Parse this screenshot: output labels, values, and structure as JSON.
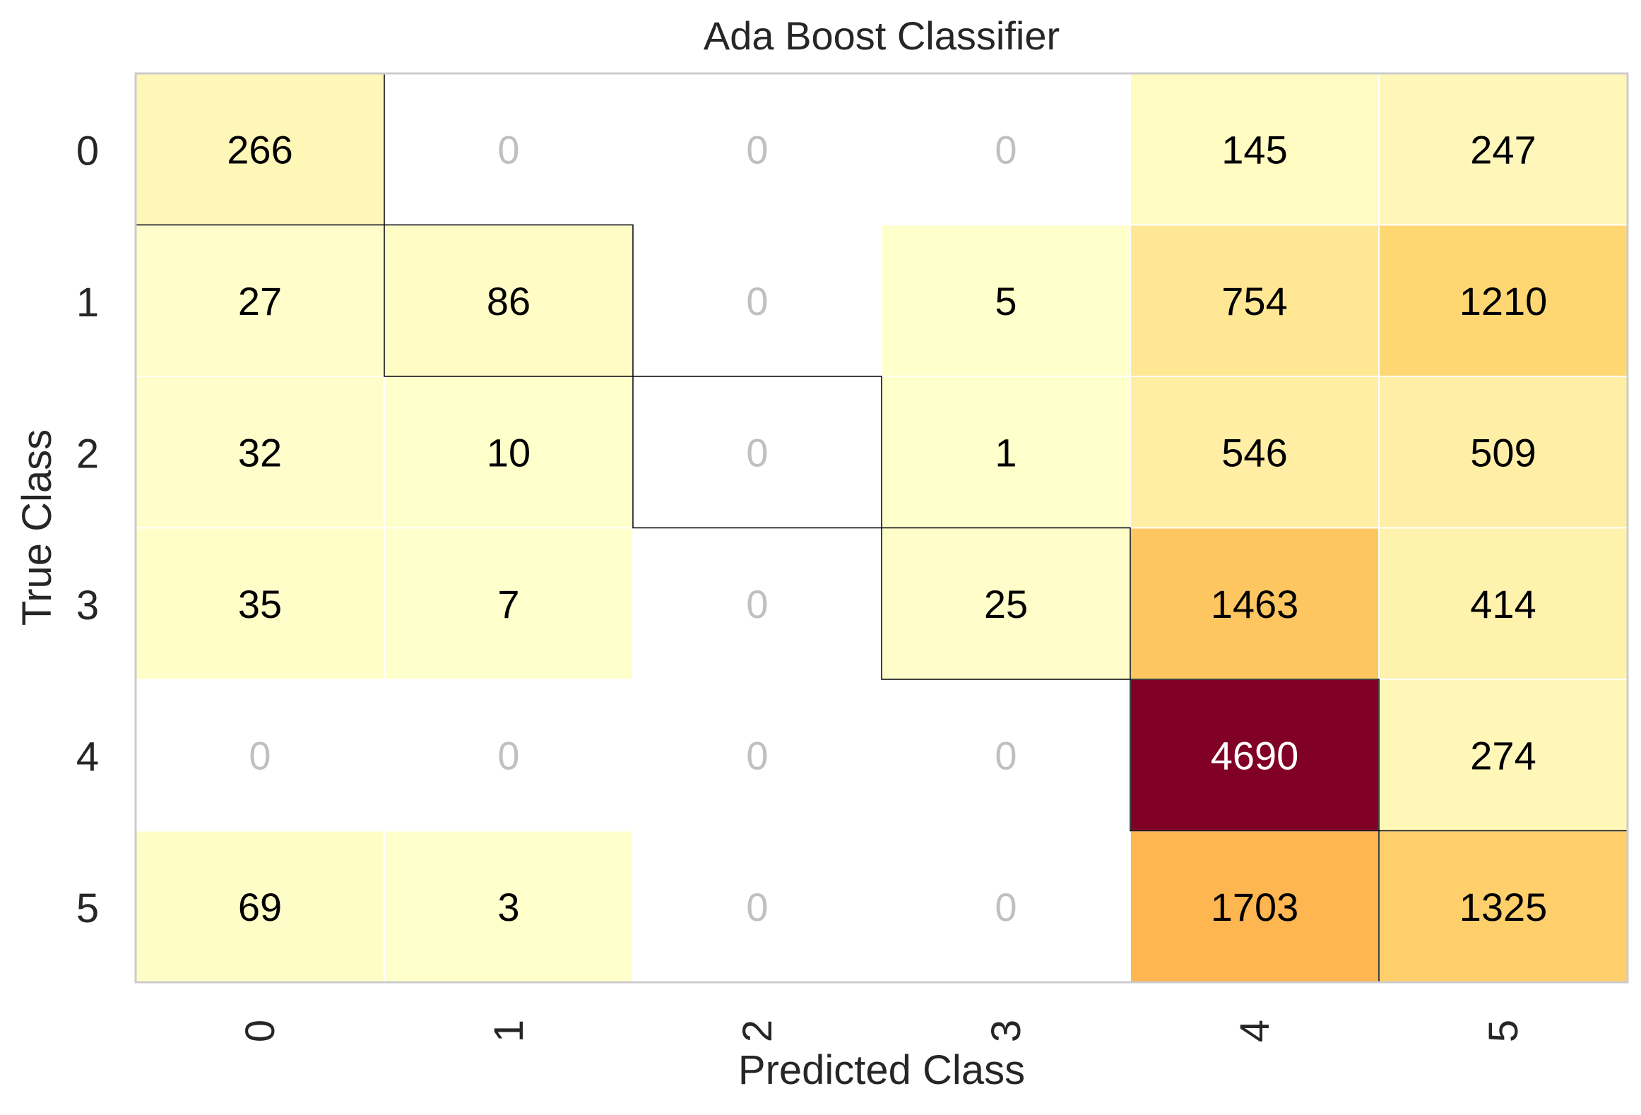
{
  "chart_data": {
    "type": "heatmap",
    "title": "Ada Boost Classifier",
    "xlabel": "Predicted Class",
    "ylabel": "True Class",
    "x_categories": [
      "0",
      "1",
      "2",
      "3",
      "4",
      "5"
    ],
    "y_categories": [
      "0",
      "1",
      "2",
      "3",
      "4",
      "5"
    ],
    "matrix": [
      [
        266,
        0,
        0,
        0,
        145,
        247
      ],
      [
        27,
        86,
        0,
        5,
        754,
        1210
      ],
      [
        32,
        10,
        0,
        1,
        546,
        509
      ],
      [
        35,
        7,
        0,
        25,
        1463,
        414
      ],
      [
        0,
        0,
        0,
        0,
        4690,
        274
      ],
      [
        69,
        3,
        0,
        0,
        1703,
        1325
      ]
    ],
    "colormap": "YlOrRd",
    "zero_cell_color": "#ffffff",
    "zero_text_color": "#c0c0c0",
    "text_color": "#000000",
    "text_color_dark_cell": "#ffffff",
    "diagonal_outlined": true,
    "grid": false
  }
}
